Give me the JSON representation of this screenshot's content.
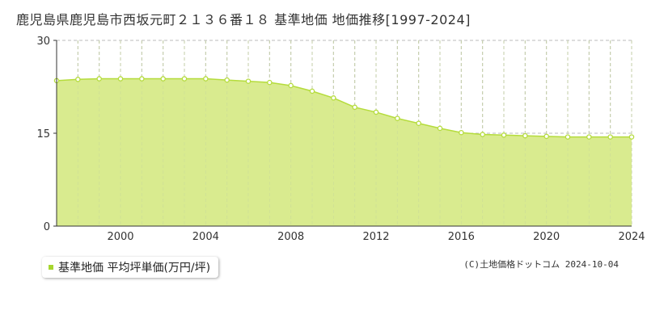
{
  "page_title": "鹿児島県鹿児島市西坂元町２１３６番１８ 基準地価 地価推移[1997-2024]",
  "copyright": "(C)土地価格ドットコム 2024-10-04",
  "legend_label": "基準地価 平均坪単価(万円/坪)",
  "colors": {
    "fill": "#d9eb8f",
    "line": "#b5dc3c",
    "point": "#b5dc3c",
    "legend_marker": "#a6d62f",
    "grid": "#bbbbbb"
  },
  "chart_data": {
    "type": "area",
    "title": "鹿児島県鹿児島市西坂元町２１３６番１８ 基準地価 地価推移[1997-2024]",
    "xlabel": "",
    "ylabel": "",
    "x": [
      1997,
      1998,
      1999,
      2000,
      2001,
      2002,
      2003,
      2004,
      2005,
      2006,
      2007,
      2008,
      2009,
      2010,
      2011,
      2012,
      2013,
      2014,
      2015,
      2016,
      2017,
      2018,
      2019,
      2020,
      2021,
      2022,
      2023,
      2024
    ],
    "series": [
      {
        "name": "基準地価 平均坪単価(万円/坪)",
        "values": [
          23.5,
          23.7,
          23.8,
          23.8,
          23.8,
          23.8,
          23.8,
          23.8,
          23.6,
          23.4,
          23.2,
          22.7,
          21.8,
          20.7,
          19.2,
          18.4,
          17.4,
          16.6,
          15.8,
          15.1,
          14.8,
          14.7,
          14.6,
          14.5,
          14.4,
          14.4,
          14.4,
          14.4
        ]
      }
    ],
    "xlim": [
      1997,
      2024
    ],
    "ylim": [
      0,
      30
    ],
    "x_ticks": [
      "2000",
      "2004",
      "2008",
      "2012",
      "2016",
      "2020",
      "2024"
    ],
    "y_ticks": [
      "0",
      "15",
      "30"
    ],
    "grid": true,
    "legend_position": "bottom-left"
  }
}
